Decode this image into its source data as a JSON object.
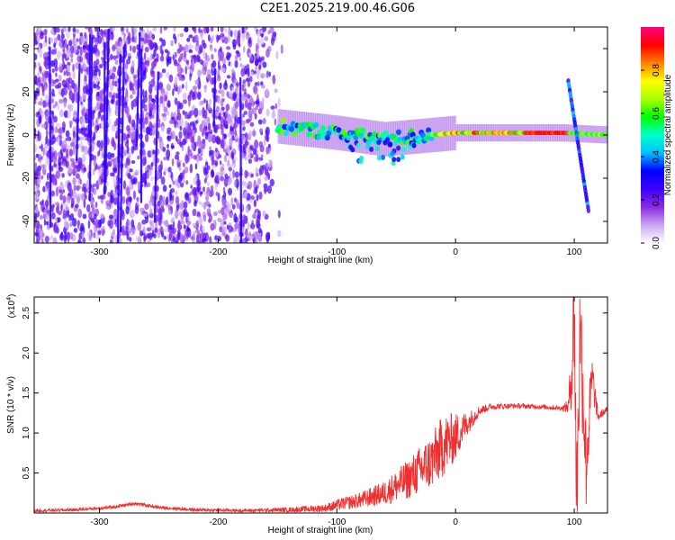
{
  "title": "C2E1.2025.219.00.46.G06",
  "chart_data": [
    {
      "type": "heatmap",
      "xlabel": "Height of straight line (km)",
      "ylabel": "Frequency (Hz)",
      "xlim": [
        -355,
        128
      ],
      "ylim": [
        -50,
        50
      ],
      "xticks": [
        -300,
        -200,
        -100,
        0,
        100
      ],
      "yticks": [
        -40,
        -20,
        0,
        20,
        40
      ],
      "colorbar": {
        "label": "Normalized spectral amplitude",
        "range": [
          0,
          1
        ],
        "ticks": [
          0.0,
          0.2,
          0.4,
          0.6,
          0.8
        ],
        "tick_labels": [
          "0.0",
          "0.2",
          "0.4",
          "0.6",
          "0.8"
        ],
        "colors": [
          "#ffffff",
          "#c9a6f2",
          "#8a2be2",
          "#3f00ff",
          "#0000ff",
          "#00c0ff",
          "#00ffcc",
          "#00ff00",
          "#aaff00",
          "#ffff00",
          "#ff8000",
          "#ff0000",
          "#ff0080"
        ]
      },
      "features": {
        "noise_region_x": [
          -355,
          -145
        ],
        "carrier_track": [
          {
            "x": -150,
            "y": 4
          },
          {
            "x": -100,
            "y": 1
          },
          {
            "x": -60,
            "y": -2
          },
          {
            "x": -40,
            "y": -1
          },
          {
            "x": 0,
            "y": 1
          },
          {
            "x": 50,
            "y": 1
          },
          {
            "x": 90,
            "y": 1
          },
          {
            "x": 128,
            "y": 0
          }
        ],
        "descending_branch": [
          {
            "x": 95,
            "y": 25
          },
          {
            "x": 112,
            "y": -35
          }
        ]
      }
    },
    {
      "type": "line",
      "xlabel": "Height of straight line (km)",
      "ylabel": "SNR (10 * v/v)",
      "y_multiplier": "(x10",
      "y_multiplier_exp": "4",
      "xlim": [
        -355,
        128
      ],
      "ylim": [
        0,
        2.7
      ],
      "xticks": [
        -300,
        -200,
        -100,
        0,
        100
      ],
      "yticks": [
        0.5,
        1.0,
        1.5,
        2.0,
        2.5
      ],
      "ytick_labels": [
        "0.5",
        "1.0",
        "1.5",
        "2.0",
        "2.5"
      ],
      "color": "#f03030",
      "series": [
        {
          "x": [
            -355,
            -320,
            -290,
            -270,
            -250,
            -220,
            -180,
            -140,
            -110,
            -100,
            -80,
            -60,
            -40,
            -20,
            -10,
            0,
            10,
            20,
            30,
            50,
            70,
            90,
            95,
            98,
            100,
            102,
            105,
            110,
            115,
            120,
            128
          ],
          "y": [
            0.03,
            0.04,
            0.07,
            0.12,
            0.07,
            0.04,
            0.03,
            0.04,
            0.06,
            0.1,
            0.16,
            0.25,
            0.42,
            0.65,
            0.85,
            0.95,
            1.12,
            1.28,
            1.33,
            1.34,
            1.33,
            1.31,
            1.33,
            1.8,
            2.6,
            0.1,
            2.4,
            0.6,
            1.7,
            1.2,
            1.3
          ],
          "noise_amplitude": [
            0.02,
            0.02,
            0.02,
            0.02,
            0.02,
            0.02,
            0.02,
            0.03,
            0.05,
            0.07,
            0.1,
            0.15,
            0.25,
            0.35,
            0.4,
            0.3,
            0.15,
            0.06,
            0.04,
            0.03,
            0.03,
            0.03,
            0.1,
            0.5,
            0.9,
            0.9,
            0.8,
            0.6,
            0.3,
            0.06,
            0.03
          ]
        }
      ]
    }
  ]
}
